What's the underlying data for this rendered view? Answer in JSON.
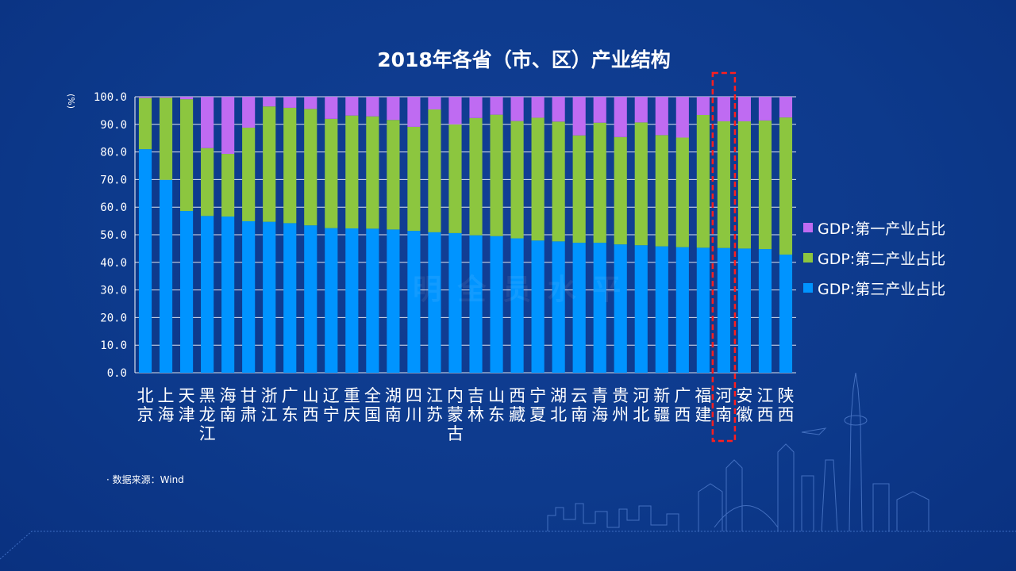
{
  "chart_data": {
    "type": "bar",
    "stacked": true,
    "title": "2018年各省（市、区）产业结构",
    "ylabel": "(%)",
    "ylim": [
      0,
      100
    ],
    "yticks": [
      "0.0",
      "10.0",
      "20.0",
      "30.0",
      "40.0",
      "50.0",
      "60.0",
      "70.0",
      "80.0",
      "90.0",
      "100.0"
    ],
    "grid": true,
    "legend_position": "right",
    "categories": [
      "北京",
      "上海",
      "天津",
      "黑龙江",
      "海南",
      "甘肃",
      "浙江",
      "广东",
      "山西",
      "辽宁",
      "重庆",
      "全国",
      "湖南",
      "四川",
      "江苏",
      "内蒙古",
      "吉林",
      "山东",
      "西藏",
      "宁夏",
      "湖北",
      "云南",
      "青海",
      "贵州",
      "河北",
      "新疆",
      "广西",
      "福建",
      "河南",
      "安徽",
      "江西",
      "陕西"
    ],
    "series": [
      {
        "name": "GDP:第三产业占比",
        "color": "#0094ff",
        "values": [
          81.0,
          69.9,
          58.6,
          56.8,
          56.6,
          54.9,
          54.7,
          54.2,
          53.4,
          52.4,
          52.3,
          52.2,
          51.9,
          51.4,
          50.9,
          50.6,
          49.8,
          49.5,
          48.7,
          47.9,
          47.6,
          47.1,
          47.1,
          46.5,
          46.2,
          45.8,
          45.5,
          45.3,
          45.2,
          45.0,
          44.8,
          42.8
        ]
      },
      {
        "name": "GDP:第二产业占比",
        "color": "#8cc63f",
        "values": [
          18.6,
          29.8,
          40.5,
          24.6,
          22.7,
          33.9,
          41.8,
          41.8,
          42.2,
          39.6,
          40.9,
          40.7,
          39.7,
          37.7,
          44.5,
          39.4,
          42.5,
          44.0,
          42.5,
          44.5,
          43.4,
          38.9,
          43.5,
          38.9,
          44.5,
          40.3,
          39.7,
          48.1,
          45.9,
          46.1,
          46.6,
          49.7
        ]
      },
      {
        "name": "GDP:第一产业占比",
        "color": "#bf6bf2",
        "values": [
          0.4,
          0.3,
          0.9,
          18.6,
          20.7,
          11.2,
          3.5,
          4.0,
          4.4,
          8.0,
          6.8,
          7.1,
          8.4,
          10.9,
          4.6,
          10.0,
          7.7,
          6.5,
          8.8,
          7.6,
          9.0,
          14.0,
          9.4,
          14.6,
          9.3,
          13.9,
          14.8,
          6.6,
          8.9,
          8.9,
          8.6,
          7.5
        ]
      }
    ],
    "highlight_category": "河南"
  },
  "source_text": "· 数据来源：Wind",
  "watermark": "明 全 员 水 平"
}
